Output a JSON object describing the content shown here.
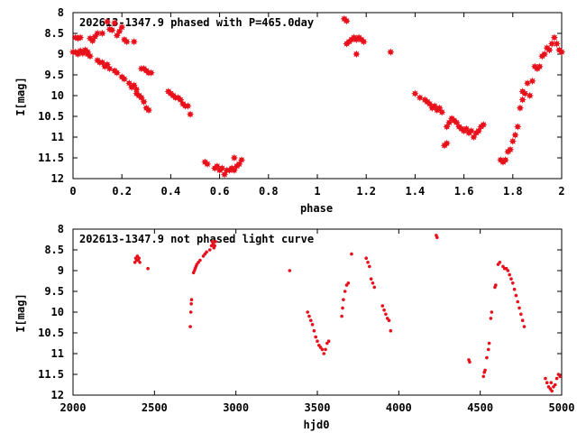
{
  "chart_data": [
    {
      "type": "scatter",
      "title": "202613-1347.9 phased with P=465.0day",
      "xlabel": "phase",
      "ylabel": "I[mag]",
      "xlim": [
        0,
        2
      ],
      "ylim": [
        8,
        12
      ],
      "y_inverted": true,
      "grid": false,
      "marker": "star",
      "color": "#e8101a",
      "x_ticks": [
        "0",
        "0.2",
        "0.4",
        "0.6",
        "0.8",
        "1",
        "1.2",
        "1.4",
        "1.6",
        "1.8",
        "2"
      ],
      "y_ticks": [
        "8",
        "8.5",
        "9",
        "9.5",
        "10",
        "10.5",
        "11",
        "11.5",
        "12"
      ],
      "points": [
        [
          0.0,
          8.95
        ],
        [
          0.01,
          8.95
        ],
        [
          0.01,
          8.6
        ],
        [
          0.02,
          9.0
        ],
        [
          0.02,
          8.62
        ],
        [
          0.03,
          8.92
        ],
        [
          0.03,
          8.6
        ],
        [
          0.04,
          8.98
        ],
        [
          0.05,
          8.9
        ],
        [
          0.06,
          8.95
        ],
        [
          0.06,
          9.0
        ],
        [
          0.07,
          9.05
        ],
        [
          0.07,
          8.62
        ],
        [
          0.08,
          8.68
        ],
        [
          0.09,
          8.58
        ],
        [
          0.1,
          9.15
        ],
        [
          0.1,
          8.5
        ],
        [
          0.11,
          9.2
        ],
        [
          0.12,
          9.2
        ],
        [
          0.12,
          8.5
        ],
        [
          0.13,
          9.3
        ],
        [
          0.14,
          8.22
        ],
        [
          0.14,
          9.25
        ],
        [
          0.15,
          8.4
        ],
        [
          0.15,
          9.35
        ],
        [
          0.16,
          8.42
        ],
        [
          0.17,
          9.4
        ],
        [
          0.17,
          8.25
        ],
        [
          0.18,
          8.55
        ],
        [
          0.18,
          9.45
        ],
        [
          0.19,
          8.45
        ],
        [
          0.2,
          9.55
        ],
        [
          0.2,
          8.35
        ],
        [
          0.21,
          8.65
        ],
        [
          0.21,
          9.6
        ],
        [
          0.22,
          8.7
        ],
        [
          0.23,
          9.7
        ],
        [
          0.24,
          9.8
        ],
        [
          0.25,
          9.75
        ],
        [
          0.26,
          9.85
        ],
        [
          0.25,
          8.7
        ],
        [
          0.26,
          9.95
        ],
        [
          0.27,
          10.0
        ],
        [
          0.28,
          10.05
        ],
        [
          0.28,
          9.35
        ],
        [
          0.29,
          10.15
        ],
        [
          0.29,
          9.35
        ],
        [
          0.3,
          10.3
        ],
        [
          0.3,
          9.4
        ],
        [
          0.31,
          10.35
        ],
        [
          0.31,
          9.45
        ],
        [
          0.32,
          9.45
        ],
        [
          0.39,
          9.9
        ],
        [
          0.4,
          9.95
        ],
        [
          0.41,
          10.0
        ],
        [
          0.42,
          10.05
        ],
        [
          0.43,
          10.05
        ],
        [
          0.44,
          10.1
        ],
        [
          0.45,
          10.2
        ],
        [
          0.46,
          10.25
        ],
        [
          0.47,
          10.25
        ],
        [
          0.48,
          10.45
        ],
        [
          0.54,
          11.6
        ],
        [
          0.55,
          11.65
        ],
        [
          0.58,
          11.75
        ],
        [
          0.59,
          11.7
        ],
        [
          0.6,
          11.8
        ],
        [
          0.61,
          11.75
        ],
        [
          0.62,
          11.9
        ],
        [
          0.63,
          11.8
        ],
        [
          0.64,
          11.8
        ],
        [
          0.65,
          11.75
        ],
        [
          0.66,
          11.8
        ],
        [
          0.66,
          11.5
        ],
        [
          0.67,
          11.7
        ],
        [
          0.68,
          11.65
        ],
        [
          0.69,
          11.55
        ],
        [
          1.11,
          8.15
        ],
        [
          1.12,
          8.2
        ],
        [
          1.12,
          8.75
        ],
        [
          1.13,
          8.7
        ],
        [
          1.14,
          8.65
        ],
        [
          1.15,
          8.6
        ],
        [
          1.16,
          8.65
        ],
        [
          1.16,
          9.0
        ],
        [
          1.17,
          8.6
        ],
        [
          1.18,
          8.65
        ],
        [
          1.19,
          8.7
        ],
        [
          1.3,
          8.95
        ],
        [
          1.4,
          9.95
        ],
        [
          1.42,
          10.05
        ],
        [
          1.44,
          10.1
        ],
        [
          1.45,
          10.15
        ],
        [
          1.46,
          10.2
        ],
        [
          1.47,
          10.3
        ],
        [
          1.48,
          10.25
        ],
        [
          1.49,
          10.35
        ],
        [
          1.5,
          10.3
        ],
        [
          1.51,
          10.4
        ],
        [
          1.52,
          11.2
        ],
        [
          1.53,
          11.15
        ],
        [
          1.53,
          10.75
        ],
        [
          1.54,
          10.65
        ],
        [
          1.55,
          10.55
        ],
        [
          1.56,
          10.6
        ],
        [
          1.57,
          10.65
        ],
        [
          1.58,
          10.75
        ],
        [
          1.59,
          10.8
        ],
        [
          1.6,
          10.85
        ],
        [
          1.61,
          10.8
        ],
        [
          1.62,
          10.9
        ],
        [
          1.63,
          10.85
        ],
        [
          1.64,
          11.0
        ],
        [
          1.65,
          10.9
        ],
        [
          1.66,
          10.85
        ],
        [
          1.67,
          10.75
        ],
        [
          1.68,
          10.7
        ],
        [
          1.75,
          11.55
        ],
        [
          1.76,
          11.6
        ],
        [
          1.77,
          11.55
        ],
        [
          1.78,
          11.35
        ],
        [
          1.79,
          11.3
        ],
        [
          1.8,
          11.1
        ],
        [
          1.81,
          10.95
        ],
        [
          1.82,
          10.75
        ],
        [
          1.83,
          10.3
        ],
        [
          1.84,
          10.1
        ],
        [
          1.84,
          9.9
        ],
        [
          1.85,
          9.95
        ],
        [
          1.86,
          9.7
        ],
        [
          1.87,
          10.0
        ],
        [
          1.88,
          9.65
        ],
        [
          1.89,
          9.3
        ],
        [
          1.9,
          9.35
        ],
        [
          1.91,
          9.3
        ],
        [
          1.92,
          9.05
        ],
        [
          1.93,
          9.0
        ],
        [
          1.94,
          8.85
        ],
        [
          1.95,
          8.9
        ],
        [
          1.96,
          8.75
        ],
        [
          1.97,
          8.6
        ],
        [
          1.98,
          8.75
        ],
        [
          1.99,
          8.9
        ],
        [
          2.0,
          8.95
        ]
      ]
    },
    {
      "type": "scatter",
      "title": "202613-1347.9 not phased light curve",
      "xlabel": "hjd0",
      "ylabel": "I[mag]",
      "xlim": [
        2000,
        5000
      ],
      "ylim": [
        8,
        12
      ],
      "y_inverted": true,
      "grid": false,
      "marker": "dot",
      "color": "#e8101a",
      "x_ticks": [
        "2000",
        "2500",
        "3000",
        "3500",
        "4000",
        "4500",
        "5000"
      ],
      "y_ticks": [
        "8",
        "8.5",
        "9",
        "9.5",
        "10",
        "10.5",
        "11",
        "11.5",
        "12"
      ],
      "points": [
        [
          2380,
          8.8
        ],
        [
          2385,
          8.7
        ],
        [
          2390,
          8.75
        ],
        [
          2395,
          8.65
        ],
        [
          2400,
          8.75
        ],
        [
          2405,
          8.7
        ],
        [
          2410,
          8.8
        ],
        [
          2460,
          8.95
        ],
        [
          2720,
          10.35
        ],
        [
          2723,
          10.0
        ],
        [
          2726,
          9.8
        ],
        [
          2728,
          9.7
        ],
        [
          2740,
          9.05
        ],
        [
          2745,
          9.0
        ],
        [
          2750,
          8.95
        ],
        [
          2755,
          8.9
        ],
        [
          2760,
          8.85
        ],
        [
          2770,
          8.8
        ],
        [
          2780,
          8.75
        ],
        [
          2800,
          8.65
        ],
        [
          2810,
          8.6
        ],
        [
          2820,
          8.55
        ],
        [
          2840,
          8.5
        ],
        [
          2850,
          8.4
        ],
        [
          2855,
          8.3
        ],
        [
          2860,
          8.35
        ],
        [
          2865,
          8.45
        ],
        [
          2870,
          8.4
        ],
        [
          2875,
          8.3
        ],
        [
          3330,
          9.0
        ],
        [
          3440,
          10.0
        ],
        [
          3450,
          10.1
        ],
        [
          3460,
          10.2
        ],
        [
          3470,
          10.3
        ],
        [
          3480,
          10.45
        ],
        [
          3490,
          10.6
        ],
        [
          3500,
          10.7
        ],
        [
          3510,
          10.8
        ],
        [
          3520,
          10.85
        ],
        [
          3530,
          10.9
        ],
        [
          3540,
          11.0
        ],
        [
          3550,
          10.9
        ],
        [
          3560,
          10.75
        ],
        [
          3570,
          10.7
        ],
        [
          3650,
          10.1
        ],
        [
          3655,
          9.9
        ],
        [
          3660,
          9.7
        ],
        [
          3670,
          9.5
        ],
        [
          3680,
          9.35
        ],
        [
          3690,
          9.3
        ],
        [
          3710,
          8.6
        ],
        [
          3800,
          8.7
        ],
        [
          3810,
          8.8
        ],
        [
          3820,
          8.9
        ],
        [
          3830,
          9.2
        ],
        [
          3840,
          9.3
        ],
        [
          3850,
          9.4
        ],
        [
          3900,
          9.85
        ],
        [
          3910,
          9.95
        ],
        [
          3920,
          10.05
        ],
        [
          3930,
          10.15
        ],
        [
          3940,
          10.2
        ],
        [
          3950,
          10.45
        ],
        [
          4230,
          8.15
        ],
        [
          4235,
          8.2
        ],
        [
          4430,
          11.15
        ],
        [
          4435,
          11.2
        ],
        [
          4520,
          11.55
        ],
        [
          4525,
          11.45
        ],
        [
          4530,
          11.4
        ],
        [
          4540,
          11.1
        ],
        [
          4550,
          10.9
        ],
        [
          4555,
          10.75
        ],
        [
          4565,
          10.15
        ],
        [
          4570,
          10.0
        ],
        [
          4590,
          9.4
        ],
        [
          4595,
          9.35
        ],
        [
          4610,
          8.85
        ],
        [
          4620,
          8.8
        ],
        [
          4640,
          8.9
        ],
        [
          4650,
          8.95
        ],
        [
          4660,
          8.95
        ],
        [
          4670,
          9.0
        ],
        [
          4680,
          9.1
        ],
        [
          4690,
          9.2
        ],
        [
          4700,
          9.3
        ],
        [
          4710,
          9.45
        ],
        [
          4720,
          9.6
        ],
        [
          4730,
          9.75
        ],
        [
          4740,
          9.9
        ],
        [
          4750,
          10.05
        ],
        [
          4760,
          10.2
        ],
        [
          4770,
          10.35
        ],
        [
          4900,
          11.6
        ],
        [
          4910,
          11.7
        ],
        [
          4920,
          11.8
        ],
        [
          4930,
          11.85
        ],
        [
          4935,
          11.7
        ],
        [
          4940,
          11.9
        ],
        [
          4950,
          11.8
        ],
        [
          4960,
          11.75
        ],
        [
          4970,
          11.6
        ],
        [
          4980,
          11.5
        ],
        [
          4990,
          11.55
        ]
      ]
    }
  ]
}
